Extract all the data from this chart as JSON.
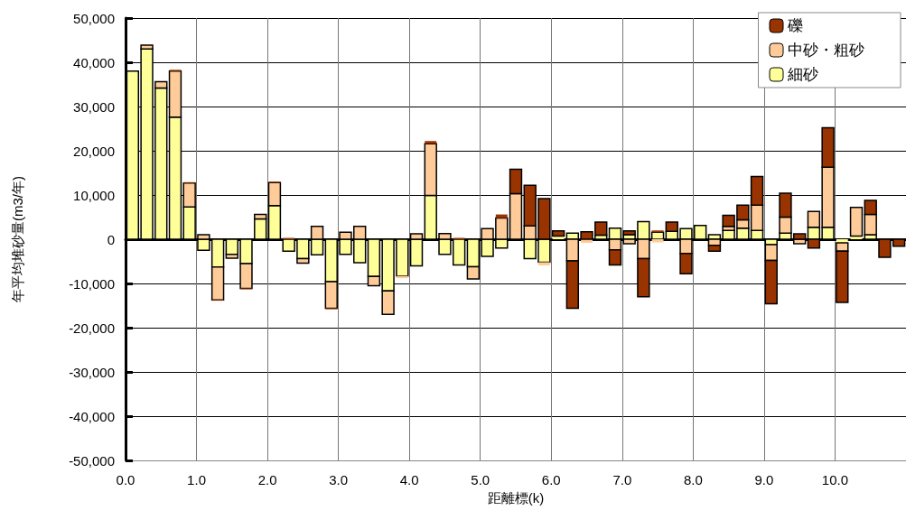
{
  "chart_data": {
    "type": "bar",
    "stacked": true,
    "xlabel": "距離標(k)",
    "ylabel": "年平均堆砂量(m3/年)",
    "x": [
      0.1,
      0.3,
      0.5,
      0.7,
      0.9,
      1.1,
      1.3,
      1.5,
      1.7,
      1.9,
      2.1,
      2.3,
      2.5,
      2.7,
      2.9,
      3.1,
      3.3,
      3.5,
      3.7,
      3.9,
      4.1,
      4.3,
      4.5,
      4.7,
      4.9,
      5.1,
      5.3,
      5.5,
      5.7,
      5.9,
      6.1,
      6.3,
      6.5,
      6.7,
      6.9,
      7.1,
      7.3,
      7.5,
      7.7,
      7.9,
      8.1,
      8.3,
      8.5,
      8.7,
      8.9,
      9.1,
      9.3,
      9.5,
      9.7,
      9.9,
      10.1,
      10.3,
      10.5,
      10.7,
      10.9
    ],
    "series": [
      {
        "name": "細砂",
        "color": "#ffff99",
        "values": [
          38000,
          43000,
          34200,
          27600,
          7300,
          -2500,
          -6300,
          -3400,
          -5500,
          4600,
          7600,
          -2700,
          -4400,
          -3500,
          -9600,
          -3400,
          -5300,
          -8400,
          -11700,
          -8300,
          -6000,
          9900,
          -3400,
          -5800,
          -6200,
          -3900,
          -2000,
          null,
          -4400,
          -5200,
          700,
          1400,
          null,
          900,
          2500,
          1000,
          4000,
          1600,
          1800,
          2400,
          3100,
          1000,
          2000,
          2500,
          2000,
          -1200,
          1400,
          null,
          2700,
          2700,
          -800,
          700,
          1000,
          null,
          null
        ]
      },
      {
        "name": "中砂・粗砂",
        "color": "#ffcc99",
        "values": [
          null,
          900,
          1400,
          10400,
          5400,
          1000,
          -7400,
          -900,
          -5600,
          1000,
          5200,
          null,
          -1000,
          2900,
          -6000,
          1600,
          2900,
          -2100,
          -5300,
          -500,
          1200,
          11700,
          1300,
          null,
          -2800,
          2400,
          4800,
          10300,
          3000,
          -700,
          null,
          -4900,
          -800,
          null,
          -2400,
          -1000,
          -4400,
          -700,
          null,
          -3200,
          null,
          -1400,
          900,
          1900,
          5700,
          -3600,
          3600,
          -1000,
          3600,
          13600,
          -1900,
          6500,
          4600,
          null,
          null
        ]
      },
      {
        "name": "礫",
        "color": "#993300",
        "values": [
          null,
          null,
          null,
          300,
          200,
          null,
          -200,
          null,
          -200,
          null,
          200,
          300,
          null,
          null,
          -200,
          null,
          null,
          null,
          null,
          null,
          null,
          600,
          null,
          300,
          null,
          null,
          800,
          5500,
          9200,
          9200,
          1200,
          -10700,
          1700,
          3000,
          -3400,
          900,
          -8600,
          400,
          2100,
          -4600,
          null,
          -1300,
          2500,
          3300,
          6500,
          -9800,
          5400,
          1200,
          -2000,
          8900,
          -11600,
          null,
          3200,
          -4100,
          -1600
        ]
      }
    ],
    "xlim": [
      0,
      11
    ],
    "xticks": [
      {
        "value": 0,
        "label": "0.0"
      },
      {
        "value": 1,
        "label": "1.0"
      },
      {
        "value": 2,
        "label": "2.0"
      },
      {
        "value": 3,
        "label": "3.0"
      },
      {
        "value": 4,
        "label": "4.0"
      },
      {
        "value": 5,
        "label": "5.0"
      },
      {
        "value": 6,
        "label": "6.0"
      },
      {
        "value": 7,
        "label": "7.0"
      },
      {
        "value": 8,
        "label": "8.0"
      },
      {
        "value": 9,
        "label": "9.0"
      },
      {
        "value": 10,
        "label": "10.0"
      }
    ],
    "ylim": [
      -50000,
      50000
    ],
    "yticks": [
      {
        "value": -50000,
        "label": "-50,000"
      },
      {
        "value": -40000,
        "label": "-40,000"
      },
      {
        "value": -30000,
        "label": "-30,000"
      },
      {
        "value": -20000,
        "label": "-20,000"
      },
      {
        "value": -10000,
        "label": "-10,000"
      },
      0,
      {
        "value": 10000,
        "label": "10,000"
      },
      {
        "value": 20000,
        "label": "20,000"
      },
      {
        "value": 30000,
        "label": "30,000"
      },
      {
        "value": 40000,
        "label": "40,000"
      },
      {
        "value": 50000,
        "label": "50,000"
      }
    ],
    "grid": true,
    "legend": "top right"
  }
}
